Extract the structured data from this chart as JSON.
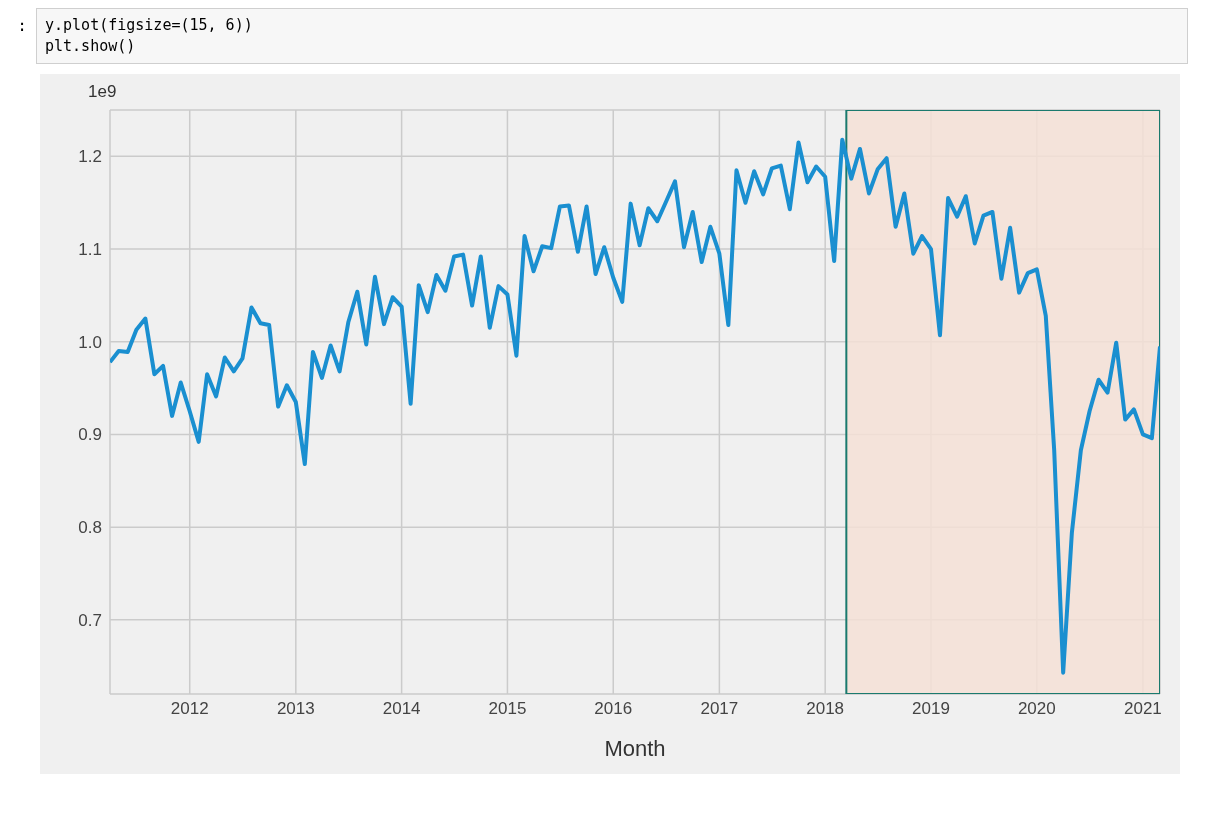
{
  "chart_data": {
    "type": "line",
    "xlabel": "Month",
    "annotations": [
      ":",
      "y.plot(figsize=(15, 6))",
      "plt.show()",
      "1e9"
    ],
    "x": [
      "2011-04",
      "2011-05",
      "2011-06",
      "2011-07",
      "2011-08",
      "2011-09",
      "2011-10",
      "2011-11",
      "2011-12",
      "2012-01",
      "2012-02",
      "2012-03",
      "2012-04",
      "2012-05",
      "2012-06",
      "2012-07",
      "2012-08",
      "2012-09",
      "2012-10",
      "2012-11",
      "2012-12",
      "2013-01",
      "2013-02",
      "2013-03",
      "2013-04",
      "2013-05",
      "2013-06",
      "2013-07",
      "2013-08",
      "2013-09",
      "2013-10",
      "2013-11",
      "2013-12",
      "2014-01",
      "2014-02",
      "2014-03",
      "2014-04",
      "2014-05",
      "2014-06",
      "2014-07",
      "2014-08",
      "2014-09",
      "2014-10",
      "2014-11",
      "2014-12",
      "2015-01",
      "2015-02",
      "2015-03",
      "2015-04",
      "2015-05",
      "2015-06",
      "2015-07",
      "2015-08",
      "2015-09",
      "2015-10",
      "2015-11",
      "2015-12",
      "2016-01",
      "2016-02",
      "2016-03",
      "2016-04",
      "2016-05",
      "2016-06",
      "2016-07",
      "2016-08",
      "2016-09",
      "2016-10",
      "2016-11",
      "2016-12",
      "2017-01",
      "2017-02",
      "2017-03",
      "2017-04",
      "2017-05",
      "2017-06",
      "2017-07",
      "2017-08",
      "2017-09",
      "2017-10",
      "2017-11",
      "2017-12",
      "2018-01",
      "2018-02",
      "2018-03",
      "2018-04",
      "2018-05",
      "2018-06",
      "2018-07",
      "2018-08",
      "2018-09",
      "2018-10",
      "2018-11",
      "2018-12",
      "2019-01",
      "2019-02",
      "2019-03",
      "2019-04",
      "2019-05",
      "2019-06",
      "2019-07",
      "2019-08",
      "2019-09",
      "2019-10",
      "2019-11",
      "2019-12",
      "2020-01",
      "2020-02",
      "2020-03",
      "2020-04",
      "2020-05",
      "2020-06",
      "2020-07",
      "2020-08",
      "2020-09",
      "2020-10",
      "2020-11",
      "2020-12",
      "2021-01",
      "2021-02",
      "2021-03"
    ],
    "series": [
      {
        "color": "#1a8fd0",
        "values": [
          0.978,
          0.99,
          0.989,
          1.013,
          1.025,
          0.965,
          0.974,
          0.92,
          0.956,
          0.925,
          0.892,
          0.965,
          0.941,
          0.983,
          0.968,
          0.982,
          1.037,
          1.02,
          1.018,
          0.93,
          0.953,
          0.935,
          0.868,
          0.989,
          0.961,
          0.996,
          0.968,
          1.021,
          1.054,
          0.997,
          1.07,
          1.019,
          1.048,
          1.038,
          0.933,
          1.061,
          1.032,
          1.072,
          1.055,
          1.092,
          1.094,
          1.039,
          1.092,
          1.015,
          1.06,
          1.051,
          0.985,
          1.114,
          1.076,
          1.103,
          1.101,
          1.146,
          1.147,
          1.097,
          1.146,
          1.073,
          1.102,
          1.069,
          1.043,
          1.149,
          1.104,
          1.144,
          1.13,
          1.151,
          1.173,
          1.102,
          1.14,
          1.086,
          1.124,
          1.095,
          1.018,
          1.185,
          1.15,
          1.184,
          1.159,
          1.187,
          1.19,
          1.143,
          1.215,
          1.172,
          1.189,
          1.178,
          1.087,
          1.218,
          1.176,
          1.208,
          1.16,
          1.186,
          1.198,
          1.124,
          1.16,
          1.095,
          1.114,
          1.1,
          1.007,
          1.155,
          1.135,
          1.157,
          1.106,
          1.136,
          1.14,
          1.068,
          1.123,
          1.053,
          1.074,
          1.078,
          1.028,
          0.883,
          0.643,
          0.794,
          0.883,
          0.925,
          0.959,
          0.945,
          0.999,
          0.916,
          0.927,
          0.9,
          0.896,
          0.995
        ]
      }
    ],
    "xlim": [
      "2011-04",
      "2021-03"
    ],
    "xticks": [
      "2012",
      "2013",
      "2014",
      "2015",
      "2016",
      "2017",
      "2018",
      "2019",
      "2020",
      "2021"
    ],
    "ylim": [
      0.62,
      1.25
    ],
    "yticks": [
      0.7,
      0.8,
      0.9,
      {
        "value": 1,
        "label": "1.0"
      },
      1.1,
      1.2
    ],
    "grid": true,
    "bands": [
      {
        "axis": "x",
        "from": "2018-03-15",
        "to": "2021-03",
        "color": "#f4e1d6"
      }
    ]
  }
}
